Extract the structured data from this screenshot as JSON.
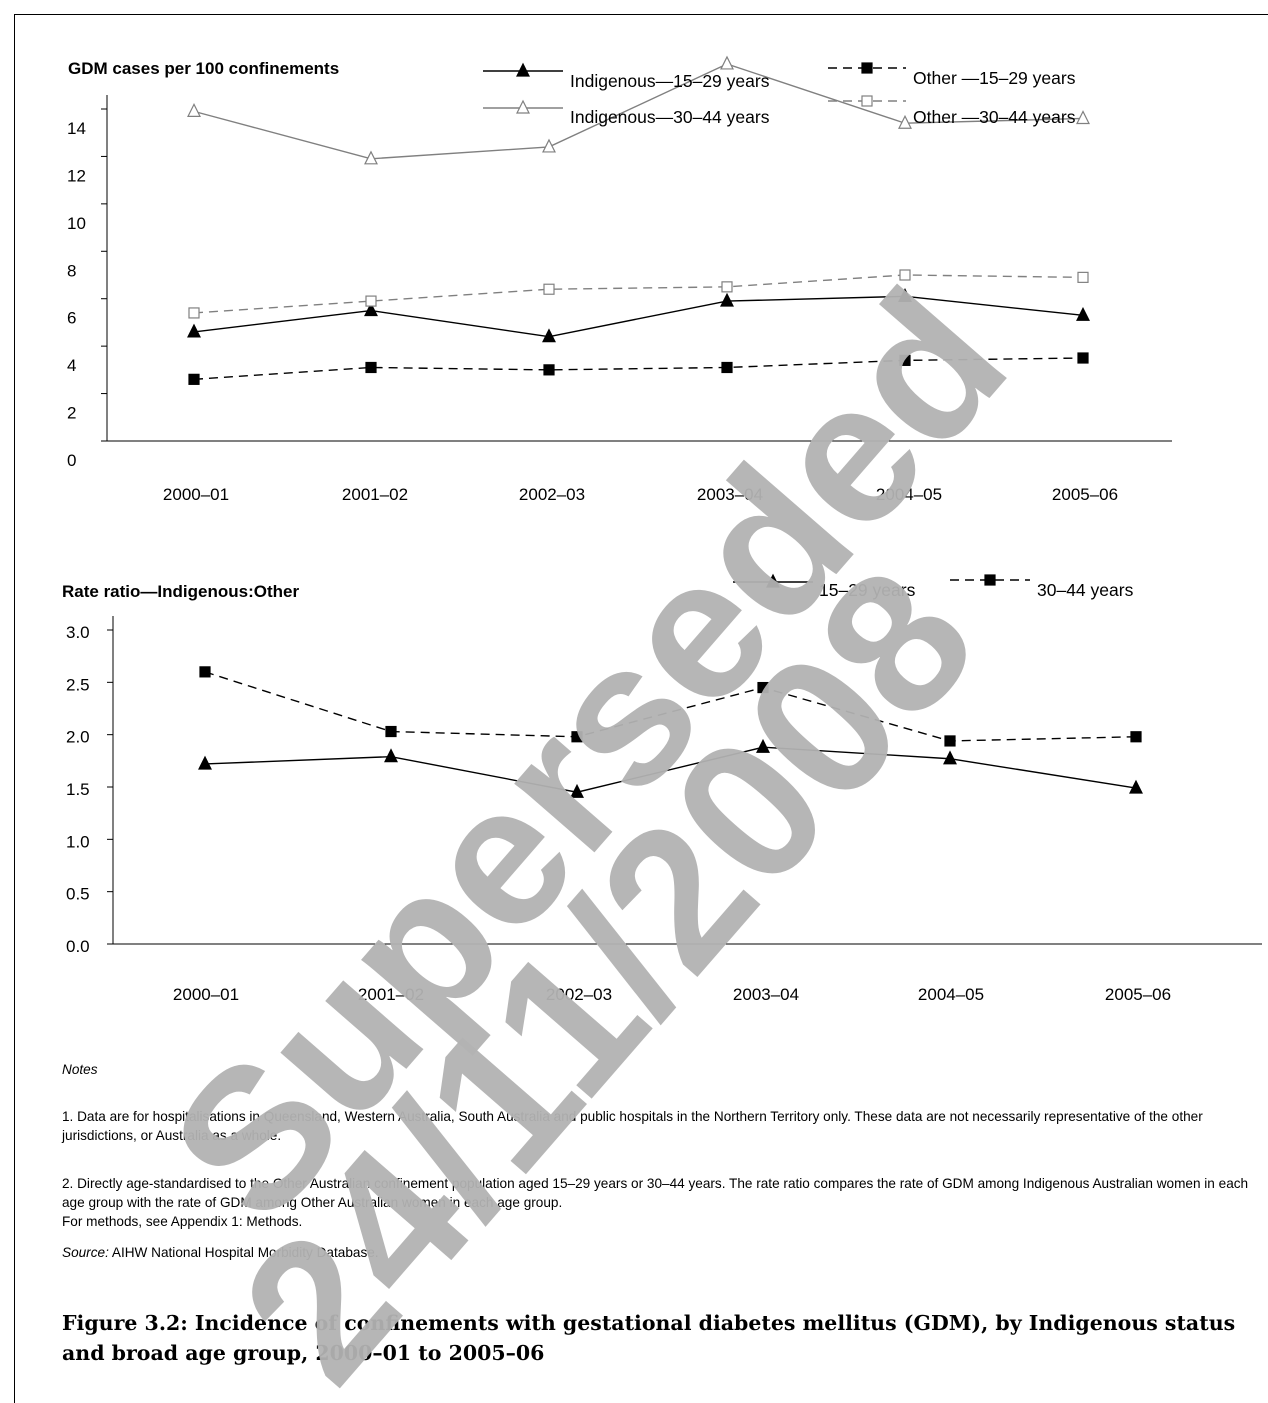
{
  "chart_data": [
    {
      "type": "line",
      "title": "GDM cases per 100 confinements",
      "categories": [
        "2000–01",
        "2001–02",
        "2002–03",
        "2003–04",
        "2004–05",
        "2005–06"
      ],
      "y_ticks": [
        "0",
        "2",
        "4",
        "6",
        "8",
        "10",
        "12",
        "14"
      ],
      "ylim": [
        0,
        14
      ],
      "grid": false,
      "legend_position": "top-right",
      "series": [
        {
          "name": "Indigenous—15–29 years",
          "marker": "filled-triangle",
          "line": "solid",
          "color": "#000000",
          "values": [
            4.6,
            5.5,
            4.4,
            5.9,
            6.1,
            5.3
          ]
        },
        {
          "name": "Other —15–29 years",
          "marker": "filled-square",
          "line": "dashed",
          "color": "#000000",
          "values": [
            2.6,
            3.1,
            3.0,
            3.1,
            3.4,
            3.5
          ]
        },
        {
          "name": "Indigenous—30–44 years",
          "marker": "open-triangle",
          "line": "solid",
          "color": "#808080",
          "values": [
            13.9,
            11.9,
            12.4,
            15.9,
            13.4,
            13.6
          ]
        },
        {
          "name": "Other —30–44 years",
          "marker": "open-square",
          "line": "dashed",
          "color": "#808080",
          "values": [
            5.4,
            5.9,
            6.4,
            6.5,
            7.0,
            6.9
          ]
        }
      ]
    },
    {
      "type": "line",
      "title": "Rate ratio—Indigenous:Other",
      "categories": [
        "2000–01",
        "2001–02",
        "2002–03",
        "2003–04",
        "2004–05",
        "2005–06"
      ],
      "y_ticks": [
        "0.0",
        "0.5",
        "1.0",
        "1.5",
        "2.0",
        "2.5",
        "3.0"
      ],
      "ylim": [
        0,
        3.0
      ],
      "grid": false,
      "legend_position": "top-right",
      "series": [
        {
          "name": "15–29 years",
          "marker": "filled-triangle",
          "line": "solid",
          "color": "#000000",
          "values": [
            1.72,
            1.79,
            1.45,
            1.88,
            1.77,
            1.49
          ]
        },
        {
          "name": "30–44 years",
          "marker": "filled-square",
          "line": "dashed",
          "color": "#000000",
          "values": [
            2.6,
            2.03,
            1.98,
            2.45,
            1.94,
            1.98
          ]
        }
      ]
    }
  ],
  "notes": {
    "heading": "Notes",
    "note_1": "1. Data are for hospitalisations in Queensland, Western Australia, South Australia and public hospitals in the Northern Territory only. These data are not necessarily representative of the other jurisdictions, or Australia as a whole.",
    "note_2_line_1": "2. Directly age-standardised to the Other Australian confinement population aged 15–29 years or 30–44 years. The rate ratio compares the rate of GDM among Indigenous Australian women in each age group with the rate of GDM among Other Australian women in each age group.",
    "note_2_line_2": "For methods, see Appendix 1: Methods.",
    "source_label": "Source:",
    "source_text": " AIHW National Hospital Morbidity Database."
  },
  "caption": "Figure 3.2: Incidence of confinements with gestational diabetes mellitus (GDM), by Indigenous status and broad age group, 2000–01 to 2005–06",
  "watermark": {
    "line_1": "Superseded",
    "line_2": "24/11/2008",
    "color": "#b3b3b3"
  }
}
